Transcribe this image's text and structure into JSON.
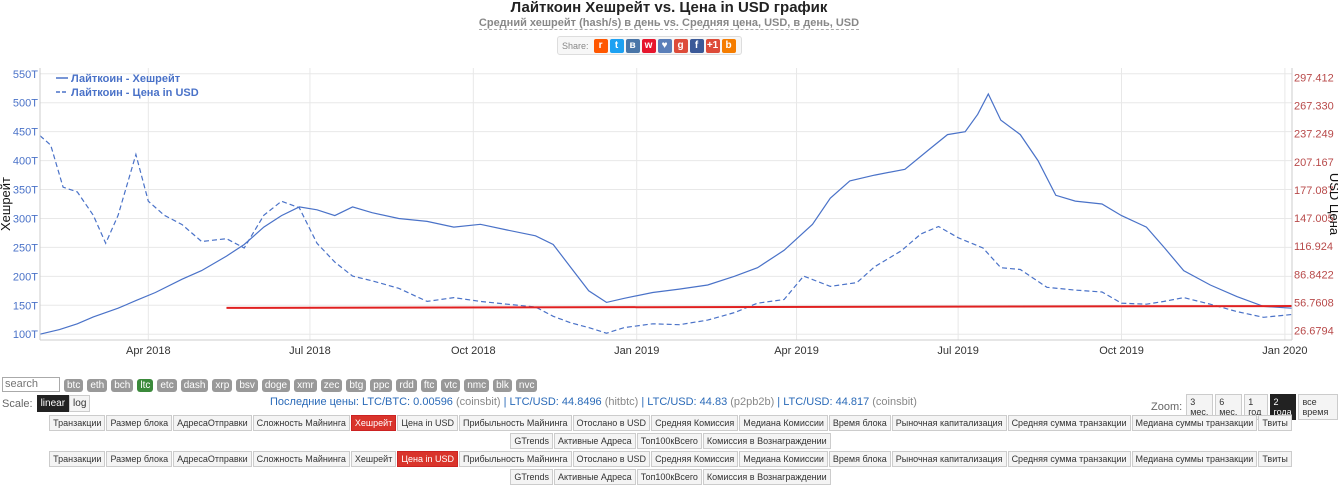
{
  "title": "Лайткоин Хешрейт vs. Цена in USD график",
  "subtitle": "Средний хешрейт (hash/s) в день vs. Средняя цена, USD, в день, USD",
  "share": {
    "label": "Share:",
    "icons": [
      {
        "name": "reddit-icon",
        "glyph": "r",
        "color": "#ff5700"
      },
      {
        "name": "twitter-icon",
        "glyph": "t",
        "color": "#1da1f2"
      },
      {
        "name": "vk-icon",
        "glyph": "в",
        "color": "#4a76a8"
      },
      {
        "name": "weibo-icon",
        "glyph": "w",
        "color": "#e6162d"
      },
      {
        "name": "like-icon",
        "glyph": "♥",
        "color": "#5b7fb9"
      },
      {
        "name": "google-plus-icon",
        "glyph": "g",
        "color": "#dd4b39"
      },
      {
        "name": "facebook-icon",
        "glyph": "f",
        "color": "#3b5998"
      },
      {
        "name": "google-plus-one-icon",
        "glyph": "+1",
        "color": "#dd4b39"
      },
      {
        "name": "blogger-icon",
        "glyph": "b",
        "color": "#f57d00"
      }
    ]
  },
  "colors": {
    "hashrate": "#4a72c8",
    "price": "#4a72c8",
    "right_axis": "#b84a4a",
    "redline": "#e02020"
  },
  "chart_data": {
    "type": "line",
    "title": "Лайткоин Хешрейт vs. Цена in USD график",
    "ylabel_left": "Хешрейт",
    "ylabel_right": "USD Цена",
    "x_ticks": [
      "Apr 2018",
      "Jul 2018",
      "Oct 2018",
      "Jan 2019",
      "Apr 2019",
      "Jul 2019",
      "Oct 2019",
      "Jan 2020"
    ],
    "x_range": [
      "2018-01-30",
      "2020-01-05"
    ],
    "y_left_ticks": [
      "100T",
      "150T",
      "200T",
      "250T",
      "300T",
      "350T",
      "400T",
      "450T",
      "500T",
      "550T"
    ],
    "y_left_range": [
      90,
      560
    ],
    "y_right_ticks": [
      "26.6794",
      "56.7608",
      "86.8422",
      "116.924",
      "147.005",
      "177.087",
      "207.167",
      "237.249",
      "267.330",
      "297.412"
    ],
    "y_right_range": [
      16.7,
      307.4
    ],
    "grid": true,
    "legend_position": "top-left",
    "series": [
      {
        "name": "Лайткоин - Хешрейт",
        "axis": "left",
        "style": "solid",
        "points": [
          [
            "2018-01-30",
            100
          ],
          [
            "2018-02-10",
            108
          ],
          [
            "2018-02-20",
            118
          ],
          [
            "2018-03-01",
            130
          ],
          [
            "2018-03-15",
            145
          ],
          [
            "2018-03-25",
            158
          ],
          [
            "2018-04-05",
            172
          ],
          [
            "2018-04-20",
            195
          ],
          [
            "2018-05-01",
            210
          ],
          [
            "2018-05-15",
            235
          ],
          [
            "2018-05-25",
            255
          ],
          [
            "2018-06-05",
            285
          ],
          [
            "2018-06-15",
            305
          ],
          [
            "2018-06-25",
            320
          ],
          [
            "2018-07-05",
            315
          ],
          [
            "2018-07-15",
            305
          ],
          [
            "2018-07-25",
            320
          ],
          [
            "2018-08-05",
            310
          ],
          [
            "2018-08-20",
            300
          ],
          [
            "2018-09-05",
            295
          ],
          [
            "2018-09-20",
            285
          ],
          [
            "2018-10-05",
            290
          ],
          [
            "2018-10-20",
            280
          ],
          [
            "2018-11-05",
            270
          ],
          [
            "2018-11-15",
            255
          ],
          [
            "2018-11-25",
            215
          ],
          [
            "2018-12-05",
            175
          ],
          [
            "2018-12-15",
            155
          ],
          [
            "2018-12-25",
            162
          ],
          [
            "2019-01-10",
            172
          ],
          [
            "2019-01-25",
            178
          ],
          [
            "2019-02-10",
            185
          ],
          [
            "2019-02-25",
            200
          ],
          [
            "2019-03-10",
            215
          ],
          [
            "2019-03-25",
            245
          ],
          [
            "2019-04-10",
            290
          ],
          [
            "2019-04-20",
            335
          ],
          [
            "2019-05-01",
            365
          ],
          [
            "2019-05-15",
            375
          ],
          [
            "2019-06-01",
            385
          ],
          [
            "2019-06-15",
            420
          ],
          [
            "2019-06-25",
            445
          ],
          [
            "2019-07-05",
            450
          ],
          [
            "2019-07-12",
            480
          ],
          [
            "2019-07-18",
            515
          ],
          [
            "2019-07-25",
            470
          ],
          [
            "2019-08-05",
            445
          ],
          [
            "2019-08-15",
            400
          ],
          [
            "2019-08-25",
            340
          ],
          [
            "2019-09-05",
            330
          ],
          [
            "2019-09-20",
            325
          ],
          [
            "2019-10-01",
            305
          ],
          [
            "2019-10-15",
            285
          ],
          [
            "2019-10-25",
            250
          ],
          [
            "2019-11-05",
            210
          ],
          [
            "2019-11-20",
            185
          ],
          [
            "2019-12-05",
            165
          ],
          [
            "2019-12-20",
            148
          ],
          [
            "2020-01-05",
            145
          ]
        ]
      },
      {
        "name": "Лайткоин - Цена in USD",
        "axis": "right",
        "style": "dashed",
        "points": [
          [
            "2018-01-30",
            235
          ],
          [
            "2018-02-05",
            225
          ],
          [
            "2018-02-12",
            180
          ],
          [
            "2018-02-20",
            175
          ],
          [
            "2018-03-01",
            150
          ],
          [
            "2018-03-08",
            120
          ],
          [
            "2018-03-15",
            150
          ],
          [
            "2018-03-25",
            215
          ],
          [
            "2018-04-01",
            165
          ],
          [
            "2018-04-10",
            150
          ],
          [
            "2018-04-20",
            140
          ],
          [
            "2018-05-01",
            122
          ],
          [
            "2018-05-15",
            125
          ],
          [
            "2018-05-25",
            115
          ],
          [
            "2018-06-05",
            150
          ],
          [
            "2018-06-15",
            165
          ],
          [
            "2018-06-25",
            158
          ],
          [
            "2018-07-05",
            120
          ],
          [
            "2018-07-15",
            100
          ],
          [
            "2018-07-25",
            85
          ],
          [
            "2018-08-05",
            80
          ],
          [
            "2018-08-20",
            72
          ],
          [
            "2018-09-05",
            58
          ],
          [
            "2018-09-20",
            62
          ],
          [
            "2018-10-05",
            58
          ],
          [
            "2018-10-20",
            55
          ],
          [
            "2018-11-05",
            52
          ],
          [
            "2018-11-15",
            42
          ],
          [
            "2018-11-25",
            35
          ],
          [
            "2018-12-05",
            30
          ],
          [
            "2018-12-15",
            24
          ],
          [
            "2018-12-25",
            30
          ],
          [
            "2019-01-10",
            34
          ],
          [
            "2019-01-25",
            33
          ],
          [
            "2019-02-10",
            38
          ],
          [
            "2019-02-25",
            46
          ],
          [
            "2019-03-10",
            56
          ],
          [
            "2019-03-25",
            60
          ],
          [
            "2019-04-05",
            85
          ],
          [
            "2019-04-20",
            74
          ],
          [
            "2019-05-05",
            78
          ],
          [
            "2019-05-15",
            95
          ],
          [
            "2019-05-30",
            112
          ],
          [
            "2019-06-10",
            130
          ],
          [
            "2019-06-20",
            138
          ],
          [
            "2019-07-01",
            126
          ],
          [
            "2019-07-15",
            115
          ],
          [
            "2019-07-25",
            94
          ],
          [
            "2019-08-05",
            92
          ],
          [
            "2019-08-20",
            73
          ],
          [
            "2019-09-05",
            70
          ],
          [
            "2019-09-20",
            68
          ],
          [
            "2019-10-01",
            56
          ],
          [
            "2019-10-15",
            55
          ],
          [
            "2019-10-25",
            58
          ],
          [
            "2019-11-05",
            62
          ],
          [
            "2019-11-20",
            55
          ],
          [
            "2019-12-05",
            47
          ],
          [
            "2019-12-20",
            41
          ],
          [
            "2020-01-05",
            44
          ]
        ]
      }
    ],
    "annotation_line": {
      "axis": "right",
      "start": [
        "2018-05-15",
        51
      ],
      "end": [
        "2020-01-05",
        53
      ]
    }
  },
  "search_placeholder": "search",
  "coins": [
    "btc",
    "eth",
    "bch",
    "ltc",
    "etc",
    "dash",
    "xrp",
    "bsv",
    "doge",
    "xmr",
    "zec",
    "btg",
    "ppc",
    "rdd",
    "ftc",
    "vtc",
    "nmc",
    "blk",
    "nvc"
  ],
  "active_coin": "ltc",
  "scale": {
    "label": "Scale:",
    "options": [
      "linear",
      "log"
    ],
    "active": "linear"
  },
  "last_prices": {
    "label": "Последние цены:",
    "items": [
      {
        "pair": "LTC/BTC:",
        "value": "0.00596",
        "source": "(coinsbit)"
      },
      {
        "pair": "LTC/USD:",
        "value": "44.8496",
        "source": "(hitbtc)"
      },
      {
        "pair": "LTC/USD:",
        "value": "44.83",
        "source": "(p2pb2b)"
      },
      {
        "pair": "LTC/USD:",
        "value": "44.817",
        "source": "(coinsbit)"
      }
    ]
  },
  "zoom": {
    "label": "Zoom:",
    "options": [
      "3 мес.",
      "6 мес.",
      "1 год",
      "2 года",
      "все время"
    ],
    "active": "2 года"
  },
  "metrics": [
    "Транзакции",
    "Размер блока",
    "АдресаОтправки",
    "Сложность Майнинга",
    "Хешрейт",
    "Цена in USD",
    "Прибыльность Майнинга",
    "Отослано в USD",
    "Средняя Комиссия",
    "Медиана Комиссии",
    "Время блока",
    "Рыночная капитализация",
    "Средняя сумма транзакции",
    "Медиана суммы транзакции",
    "Твиты",
    "GTrends",
    "Активные Адреса",
    "Топ100кВсего",
    "Комиссия в Вознаграждении"
  ],
  "metrics_row1_active": "Хешрейт",
  "metrics_row2_active": "Цена in USD"
}
